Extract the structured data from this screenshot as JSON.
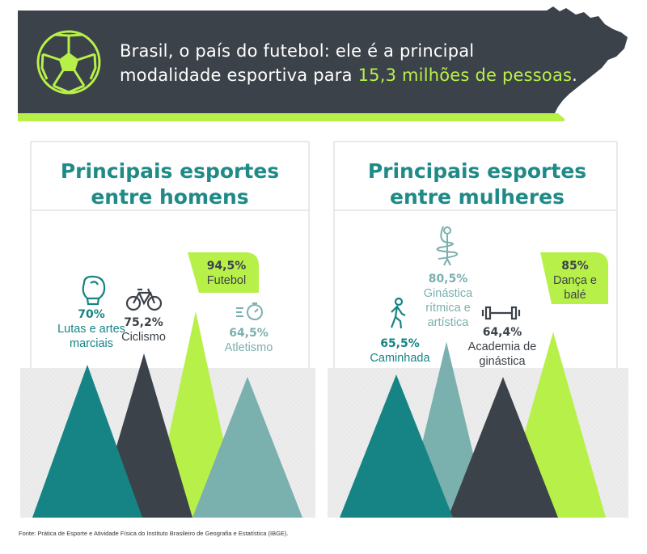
{
  "banner": {
    "text_before": "Brasil, o país do futebol: ele é a principal modalidade esportiva para ",
    "highlight": "15,3 milhões de pessoas",
    "text_after": ".",
    "icon": "soccer-ball-icon"
  },
  "colors": {
    "dark": "#3b4249",
    "lime": "#b8f04a",
    "teal_dark": "#168484",
    "teal_light": "#7ab0ae",
    "title": "#1f8a87"
  },
  "chart_data": [
    {
      "type": "bar",
      "title": "Principais esportes entre homens",
      "categories": [
        "Lutas e artes marciais",
        "Ciclismo",
        "Futebol",
        "Atletismo"
      ],
      "values": [
        70,
        75.2,
        94.5,
        64.5
      ],
      "labels": [
        "70%",
        "75,2%",
        "94,5%",
        "64,5%"
      ],
      "icons": [
        "boxing-glove-icon",
        "bicycle-icon",
        "",
        "stopwatch-icon"
      ],
      "colors": [
        "#168484",
        "#3b4249",
        "#b8f04a",
        "#7ab0ae"
      ]
    },
    {
      "type": "bar",
      "title": "Principais esportes entre mulheres",
      "categories": [
        "Caminhada",
        "Ginástica rítmica e artística",
        "Academia de ginástica",
        "Dança e balé"
      ],
      "values": [
        65.5,
        80.5,
        64.4,
        85
      ],
      "labels": [
        "65,5%",
        "80,5%",
        "64,4%",
        "85%"
      ],
      "icons": [
        "walking-person-icon",
        "ribbon-gymnast-icon",
        "dumbbell-icon",
        ""
      ],
      "colors": [
        "#168484",
        "#7ab0ae",
        "#3b4249",
        "#b8f04a"
      ]
    }
  ],
  "source": "Fonte: Prática de Esporte e Atividade Física do Instituto Brasileiro de Geografia e Estatística (IBGE)."
}
